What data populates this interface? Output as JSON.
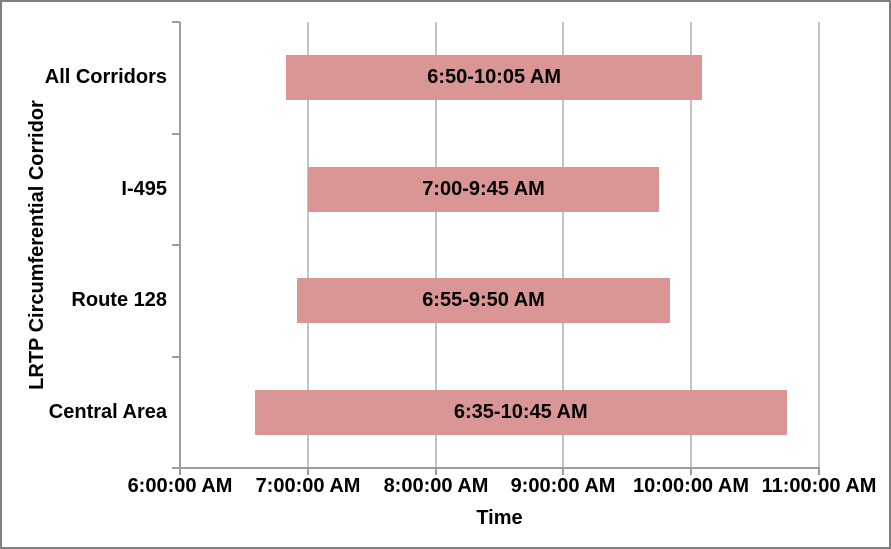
{
  "chart_data": {
    "type": "bar",
    "orientation": "horizontal",
    "title": "",
    "xlabel": "Time",
    "ylabel": "LRTP Circumferential Corridor",
    "x_ticks": [
      "6:00:00 AM",
      "7:00:00 AM",
      "8:00:00 AM",
      "9:00:00 AM",
      "10:00:00 AM",
      "11:00:00 AM"
    ],
    "xlim_hours": [
      6,
      11
    ],
    "grid": "vertical major gridlines at each hour",
    "legend_position": "none",
    "categories": [
      "All Corridors",
      "I-495",
      "Route 128",
      "Central Area"
    ],
    "series": [
      {
        "category": "All Corridors",
        "label": "6:50-10:05 AM",
        "start_hour": 6.8333,
        "end_hour": 10.0833
      },
      {
        "category": "I-495",
        "label": "7:00-9:45 AM",
        "start_hour": 7.0,
        "end_hour": 9.75
      },
      {
        "category": "Route 128",
        "label": "6:55-9:50 AM",
        "start_hour": 6.9167,
        "end_hour": 9.8333
      },
      {
        "category": "Central Area",
        "label": "6:35-10:45 AM",
        "start_hour": 6.5833,
        "end_hour": 10.75
      }
    ],
    "colors": {
      "bar_fill": "#D99694",
      "gridline": "#C3C3C3",
      "axis_line": "#9D9D9D",
      "label_text": "#000000",
      "frame_border": "#808080",
      "background": "#FFFFFF"
    }
  }
}
